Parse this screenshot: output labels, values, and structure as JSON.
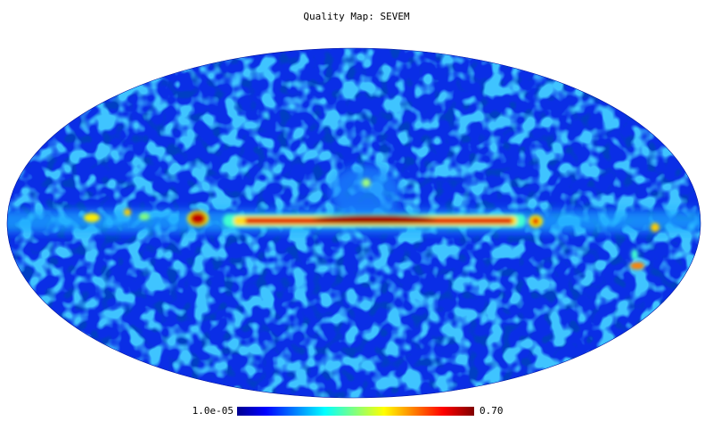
{
  "title": "Quality Map: SEVEM",
  "colorbar": {
    "min_label": "1.0e-05",
    "max_label": "0.70"
  }
}
